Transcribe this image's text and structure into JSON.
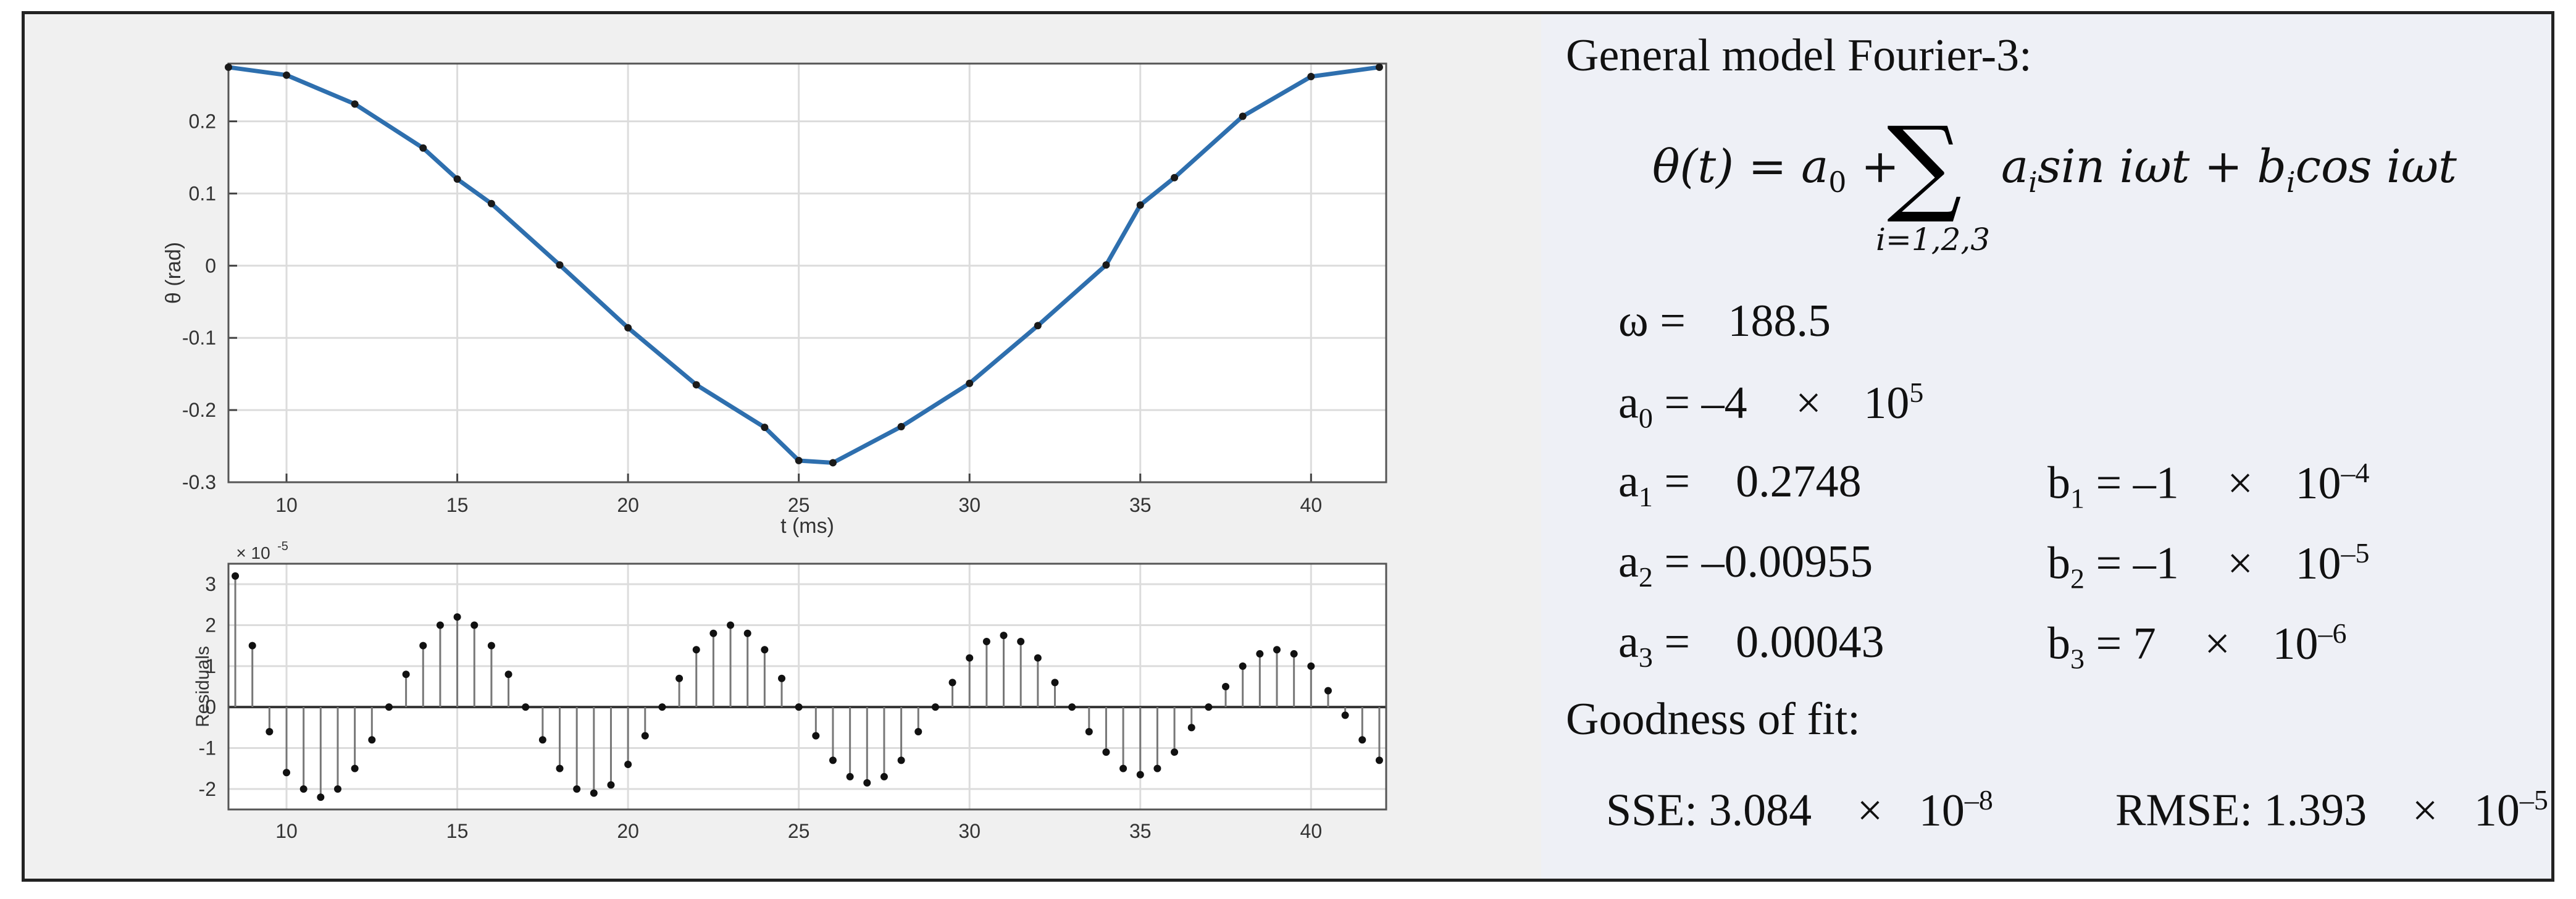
{
  "chart_data": [
    {
      "type": "scatter",
      "title": "",
      "xlabel": "t (ms)",
      "ylabel": "θ (rad)",
      "xlim": [
        8.3,
        42.2
      ],
      "ylim": [
        -0.3,
        0.28
      ],
      "xticks": [
        "10",
        "15",
        "20",
        "25",
        "30",
        "35",
        "40"
      ],
      "yticks": [
        "0.2",
        "0.1",
        "0",
        "-0.1",
        "-0.2",
        "-0.3"
      ],
      "grid": true,
      "series": [
        {
          "name": "",
          "style": "line",
          "color": "#2e6fae",
          "x": [
            8.3,
            10,
            12,
            14,
            15,
            16,
            18,
            20,
            22,
            24,
            25,
            26,
            28,
            30,
            32,
            34,
            35,
            36,
            38,
            40,
            42
          ],
          "y": [
            0.275,
            0.264,
            0.224,
            0.163,
            0.12,
            0.086,
            0.001,
            -0.086,
            -0.165,
            -0.224,
            -0.27,
            -0.273,
            -0.223,
            -0.163,
            -0.083,
            0.001,
            0.084,
            0.122,
            0.207,
            0.262,
            0.275
          ]
        },
        {
          "name": "",
          "style": "markers",
          "color": "#1a1a1a",
          "x": [
            8.3,
            10,
            12,
            14,
            15,
            16,
            18,
            20,
            22,
            24,
            25,
            26,
            28,
            30,
            32,
            34,
            35,
            36,
            38,
            40,
            42
          ],
          "y": [
            0.275,
            0.264,
            0.224,
            0.163,
            0.12,
            0.086,
            0.001,
            -0.086,
            -0.165,
            -0.224,
            -0.27,
            -0.273,
            -0.223,
            -0.163,
            -0.083,
            0.001,
            0.084,
            0.122,
            0.207,
            0.262,
            0.275
          ]
        }
      ]
    },
    {
      "type": "stem",
      "title": "",
      "xlabel": "",
      "ylabel": "Residuals",
      "y_exponent": "× 10",
      "y_exponent_power": "-5",
      "xlim": [
        8.3,
        42.2
      ],
      "ylim": [
        -2.5,
        3.5
      ],
      "xticks": [
        "10",
        "15",
        "20",
        "25",
        "30",
        "35",
        "40"
      ],
      "yticks": [
        "3",
        "2",
        "1",
        "0",
        "-1",
        "-2"
      ],
      "grid": true,
      "series": [
        {
          "name": "",
          "x": [
            8.5,
            9.0,
            9.5,
            10.0,
            10.5,
            11.0,
            11.5,
            12.0,
            12.5,
            13.0,
            13.5,
            14.0,
            14.5,
            15.0,
            15.5,
            16.0,
            16.5,
            17.0,
            17.5,
            18.0,
            18.5,
            19.0,
            19.5,
            20.0,
            20.5,
            21.0,
            21.5,
            22.0,
            22.5,
            23.0,
            23.5,
            24.0,
            24.5,
            25.0,
            25.5,
            26.0,
            26.5,
            27.0,
            27.5,
            28.0,
            28.5,
            29.0,
            29.5,
            30.0,
            30.5,
            31.0,
            31.5,
            32.0,
            32.5,
            33.0,
            33.5,
            34.0,
            34.5,
            35.0,
            35.5,
            36.0,
            36.5,
            37.0,
            37.5,
            38.0,
            38.5,
            39.0,
            39.5,
            40.0,
            40.5,
            41.0,
            41.5,
            42.0
          ],
          "y": [
            3.2,
            1.5,
            -0.6,
            -1.6,
            -2.0,
            -2.2,
            -2.0,
            -1.5,
            -0.8,
            0.0,
            0.8,
            1.5,
            2.0,
            2.2,
            2.0,
            1.5,
            0.8,
            0.0,
            -0.8,
            -1.5,
            -2.0,
            -2.1,
            -1.9,
            -1.4,
            -0.7,
            0.0,
            0.7,
            1.4,
            1.8,
            2.0,
            1.8,
            1.4,
            0.7,
            0.0,
            -0.7,
            -1.3,
            -1.7,
            -1.85,
            -1.7,
            -1.3,
            -0.6,
            0.0,
            0.6,
            1.2,
            1.6,
            1.75,
            1.6,
            1.2,
            0.6,
            0.0,
            -0.6,
            -1.1,
            -1.5,
            -1.65,
            -1.5,
            -1.1,
            -0.5,
            0.0,
            0.5,
            1.0,
            1.3,
            1.4,
            1.3,
            1.0,
            0.4,
            -0.2,
            -0.8,
            -1.3
          ]
        }
      ]
    }
  ],
  "model": {
    "heading": "General model Fourier-3:",
    "formula_left": "θ(t) = a",
    "formula_a0_sub": "0",
    "formula_plus": "+",
    "formula_sum_symbol": "∑",
    "formula_sum_index": "i=1,2,3",
    "formula_term1": "a",
    "formula_term1_sub": "i",
    "formula_term1_rest": "sin iωt + b",
    "formula_term2_sub": "i",
    "formula_term2_rest": "cos iωt",
    "omega_label": "ω =",
    "omega_value": "188.5",
    "a0_label": "a",
    "a0_sub": "0",
    "a0_value": "= –4",
    "a0_times": "×",
    "a0_power": "10",
    "a0_exp": "5",
    "a1_label": "a",
    "a1_sub": "1",
    "a1_value": "=    0.2748",
    "a2_label": "a",
    "a2_sub": "2",
    "a2_value": "= –0.00955",
    "a3_label": "a",
    "a3_sub": "3",
    "a3_value": "=    0.00043",
    "b1_label": "b",
    "b1_sub": "1",
    "b1_value": "= –1",
    "b1_times": "×",
    "b1_power": "10",
    "b1_exp": "–4",
    "b2_label": "b",
    "b2_sub": "2",
    "b2_value": "= –1",
    "b2_times": "×",
    "b2_power": "10",
    "b2_exp": "–5",
    "b3_label": "b",
    "b3_sub": "3",
    "b3_value": "= 7",
    "b3_times": "×",
    "b3_power": "10",
    "b3_exp": "–6",
    "gof_heading": "Goodness of fit:",
    "sse_label": "SSE: 3.084",
    "sse_times": "×",
    "sse_power": "10",
    "sse_exp": "–8",
    "rmse_label": "RMSE: 1.393",
    "rmse_times": "×",
    "rmse_power": "10",
    "rmse_exp": "–5"
  }
}
